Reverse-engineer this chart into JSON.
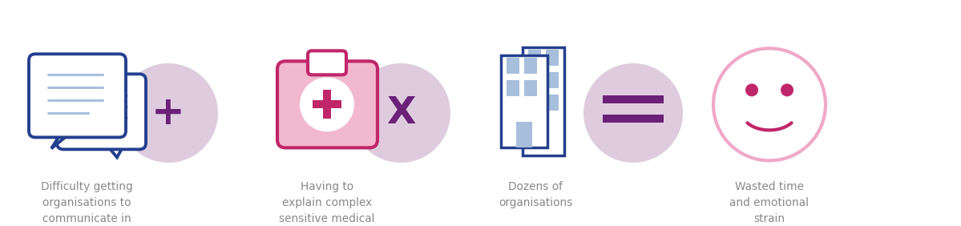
{
  "bg_color": "#ffffff",
  "diamond_color": "#deccde",
  "operator_color": "#6b2177",
  "text_color": "#888888",
  "blue_dark": "#253f8f",
  "blue_mid": "#3a5aad",
  "blue_light": "#a8bedd",
  "pink_dark": "#c0266a",
  "pink_mid": "#d94080",
  "pink_light": "#f2b8ce",
  "pink_face": "#f0a8c8",
  "labels": [
    "Difficulty getting\norganisations to\ncommunicate in\na way that works",
    "Having to\nexplain complex\nsensitive medical\ninformation",
    "Dozens of\norganisations",
    "Wasted time\nand emotional\nstrain"
  ],
  "fig_w": 11.99,
  "fig_h": 2.82,
  "dpi": 100
}
